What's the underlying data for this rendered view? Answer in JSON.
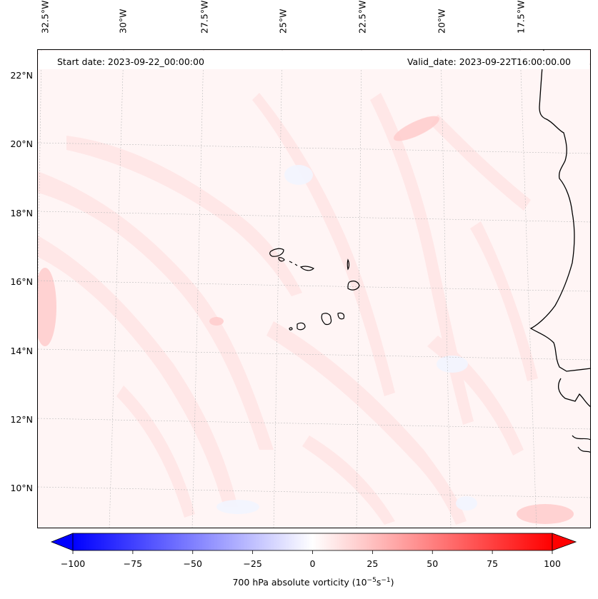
{
  "header": {
    "start_date": "Start date: 2023-09-22_00:00:00",
    "valid_date": "Valid_date: 2023-09-22T16:00:00.00"
  },
  "longitude_labels": [
    "32.5°W",
    "30°W",
    "27.5°W",
    "25°W",
    "22.5°W",
    "20°W",
    "17.5°W"
  ],
  "latitude_labels": [
    "22°N",
    "20°N",
    "18°N",
    "16°N",
    "14°N",
    "12°N",
    "10°N"
  ],
  "colorbar": {
    "min": -100,
    "max": 100,
    "tick_labels": [
      "−100",
      "−75",
      "−50",
      "−25",
      "0",
      "25",
      "50",
      "75",
      "100"
    ],
    "title_main": "700 hPa absolute vorticity (10",
    "title_sup1": "−5",
    "title_mid": "s",
    "title_sup2": "−1",
    "title_end": ")",
    "color_low": "#0000ff",
    "color_mid": "#ffffff",
    "color_high": "#ff0000"
  }
}
